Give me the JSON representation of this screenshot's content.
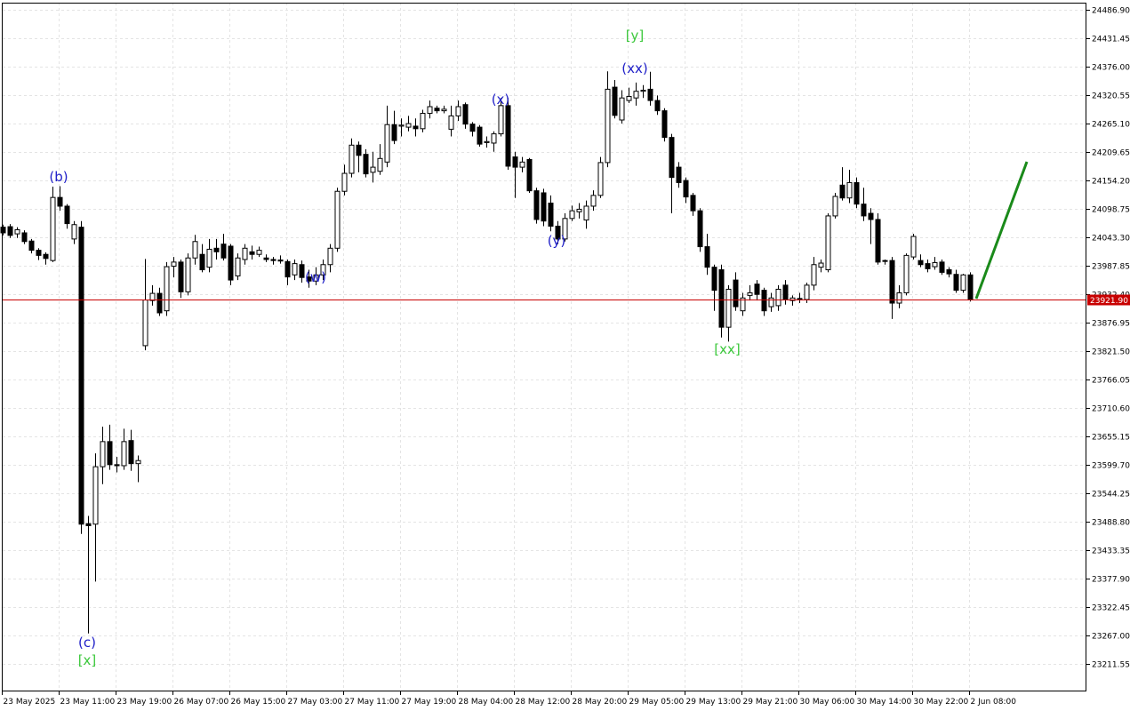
{
  "chart_data": {
    "type": "candlestick",
    "categories": [
      "23 May 2025",
      null,
      null,
      null,
      null,
      null,
      null,
      null,
      "23 May 11:00",
      null,
      null,
      null,
      null,
      null,
      null,
      null,
      "23 May 19:00",
      null,
      null,
      null,
      null,
      null,
      null,
      null,
      "26 May 07:00",
      null,
      null,
      null,
      null,
      null,
      null,
      null,
      "26 May 15:00",
      null,
      null,
      null,
      null,
      null,
      null,
      null,
      "27 May 03:00",
      null,
      null,
      null,
      null,
      null,
      null,
      null,
      "27 May 11:00",
      null,
      null,
      null,
      null,
      null,
      null,
      null,
      "27 May 19:00",
      null,
      null,
      null,
      null,
      null,
      null,
      null,
      "28 May 04:00",
      null,
      null,
      null,
      null,
      null,
      null,
      null,
      "28 May 12:00",
      null,
      null,
      null,
      null,
      null,
      null,
      null,
      "28 May 20:00",
      null,
      null,
      null,
      null,
      null,
      null,
      null,
      "29 May 05:00",
      null,
      null,
      null,
      null,
      null,
      null,
      null,
      "29 May 13:00",
      null,
      null,
      null,
      null,
      null,
      null,
      null,
      "29 May 21:00",
      null,
      null,
      null,
      null,
      null,
      null,
      null,
      "30 May 06:00",
      null,
      null,
      null,
      null,
      null,
      null,
      null,
      "30 May 14:00",
      null,
      null,
      null,
      null,
      null,
      null,
      null,
      "30 May 22:00",
      null,
      null,
      null,
      null,
      null,
      null,
      null,
      "2 Jun 08:00"
    ],
    "open": [
      24063,
      24064,
      24050,
      24052,
      24036,
      24018,
      24010,
      23998,
      24121,
      24104,
      24040,
      24063,
      23485,
      23484,
      23596,
      23645,
      23600,
      23598,
      23647,
      23602,
      23832,
      23920,
      23934,
      23900,
      23987,
      23995,
      23937,
      24003,
      24010,
      23985,
      24022,
      24030,
      24026,
      23968,
      24000,
      24015,
      24010,
      24003,
      24000,
      23999,
      23996,
      23970,
      23990,
      23966,
      23958,
      23970,
      23990,
      24022,
      24133,
      24168,
      24223,
      24205,
      24170,
      24172,
      24190,
      24263,
      24260,
      24258,
      24260,
      24255,
      24285,
      24295,
      24290,
      24254,
      24280,
      24302,
      24264,
      24258,
      24228,
      24227,
      24245,
      24300,
      24200,
      24180,
      24195,
      24134,
      24130,
      24110,
      24065,
      24040,
      24080,
      24093,
      24077,
      24104,
      24125,
      24189,
      24336,
      24272,
      24310,
      24315,
      24328,
      24332,
      24310,
      24290,
      24238,
      24180,
      24154,
      24125,
      24095,
      24025,
      23985,
      23980,
      23868,
      23960,
      23900,
      23930,
      23952,
      23940,
      23908,
      23910,
      23950,
      23920,
      23924,
      23922,
      23950,
      23985,
      23980,
      24085,
      24145,
      24120,
      24150,
      24108,
      24090,
      24078,
      23997,
      23998,
      23915,
      23935,
      24005,
      23998,
      23992,
      23986,
      23995,
      23980,
      23971,
      23940,
      23970
    ],
    "high": [
      24068,
      24069,
      24063,
      24057,
      24040,
      24022,
      24014,
      24142,
      24143,
      24108,
      24075,
      24075,
      23500,
      23622,
      23674,
      23678,
      23615,
      23670,
      23668,
      23618,
      24001,
      23950,
      23945,
      23995,
      24005,
      24000,
      24012,
      24048,
      24030,
      24040,
      24040,
      24050,
      24030,
      24012,
      24030,
      24027,
      24025,
      24010,
      24005,
      24008,
      24000,
      24000,
      23998,
      23980,
      23985,
      24000,
      24030,
      24140,
      24185,
      24236,
      24230,
      24215,
      24210,
      24225,
      24300,
      24290,
      24275,
      24280,
      24275,
      24292,
      24310,
      24300,
      24300,
      24300,
      24310,
      24306,
      24268,
      24262,
      24240,
      24250,
      24315,
      24315,
      24210,
      24200,
      24198,
      24140,
      24138,
      24125,
      24075,
      24090,
      24105,
      24110,
      24115,
      24135,
      24200,
      24367,
      24350,
      24330,
      24335,
      24345,
      24340,
      24366,
      24320,
      24295,
      24245,
      24190,
      24160,
      24130,
      24100,
      24050,
      23990,
      23990,
      23950,
      23975,
      23935,
      23950,
      23960,
      23945,
      23935,
      23950,
      23960,
      23930,
      23935,
      23955,
      24005,
      24000,
      24090,
      24130,
      24180,
      24175,
      24160,
      24140,
      24100,
      24090,
      24000,
      24005,
      23950,
      24012,
      24050,
      24010,
      24000,
      24005,
      24000,
      23985,
      23980,
      23972,
      23975
    ],
    "low": [
      24047,
      24042,
      24042,
      24030,
      24012,
      23999,
      23990,
      23995,
      24095,
      24060,
      24030,
      23465,
      23271,
      23372,
      23562,
      23590,
      23585,
      23590,
      23588,
      23566,
      23823,
      23910,
      23890,
      23890,
      23965,
      23925,
      23930,
      23990,
      23975,
      23975,
      24000,
      23998,
      23950,
      23960,
      23990,
      24000,
      24005,
      23995,
      23990,
      23992,
      23950,
      23960,
      23955,
      23945,
      23950,
      23960,
      23975,
      24015,
      24125,
      24160,
      24170,
      24160,
      24150,
      24165,
      24180,
      24225,
      24240,
      24250,
      24240,
      24248,
      24275,
      24285,
      24285,
      24240,
      24270,
      24255,
      24240,
      24220,
      24218,
      24210,
      24240,
      24175,
      24120,
      24170,
      24130,
      24070,
      24065,
      24055,
      24030,
      24035,
      24075,
      24080,
      24060,
      24095,
      24120,
      24180,
      24275,
      24265,
      24305,
      24300,
      24315,
      24300,
      24282,
      24230,
      24090,
      24140,
      24110,
      24085,
      24015,
      23970,
      23900,
      23848,
      23840,
      23900,
      23890,
      23920,
      23920,
      23890,
      23898,
      23900,
      23912,
      23910,
      23915,
      23915,
      23940,
      23975,
      23975,
      24080,
      24115,
      24110,
      24100,
      24075,
      24030,
      23990,
      23990,
      23884,
      23905,
      23930,
      24000,
      23985,
      23975,
      23980,
      23970,
      23965,
      23935,
      23935,
      23918
    ],
    "close": [
      24052,
      24047,
      24058,
      24035,
      24018,
      24008,
      24002,
      24121,
      24104,
      24070,
      24068,
      23484,
      23481,
      23596,
      23645,
      23600,
      23598,
      23645,
      23602,
      23608,
      23921,
      23934,
      23896,
      23986,
      23995,
      23937,
      24003,
      24035,
      23980,
      24020,
      24015,
      24003,
      23960,
      24003,
      24022,
      24010,
      24018,
      24000,
      23998,
      23997,
      23966,
      23992,
      23965,
      23958,
      23970,
      23990,
      24022,
      24133,
      24168,
      24223,
      24203,
      24167,
      24180,
      24197,
      24263,
      24232,
      24262,
      24265,
      24255,
      24285,
      24298,
      24290,
      24293,
      24280,
      24298,
      24264,
      24250,
      24225,
      24230,
      24245,
      24300,
      24182,
      24180,
      24190,
      24134,
      24078,
      24075,
      24065,
      24040,
      24080,
      24095,
      24098,
      24104,
      24125,
      24189,
      24332,
      24281,
      24315,
      24318,
      24328,
      24330,
      24310,
      24290,
      24238,
      24160,
      24150,
      24122,
      24095,
      24025,
      23985,
      23940,
      23868,
      23942,
      23908,
      23925,
      23935,
      23932,
      23900,
      23925,
      23942,
      23922,
      23925,
      23922,
      23950,
      23990,
      23993,
      24085,
      24123,
      24120,
      24150,
      24108,
      24085,
      24078,
      23995,
      23998,
      23915,
      23935,
      24008,
      24045,
      23990,
      23982,
      23994,
      23975,
      23972,
      23940,
      23970,
      23921.9
    ],
    "up_color": "#ffffff",
    "down_color": "#000000",
    "ylim": [
      23157.84,
      24500.76
    ],
    "yticks": [
      {
        "value": 24486.9,
        "label": "24486.90"
      },
      {
        "value": 24431.45,
        "label": "24431.45"
      },
      {
        "value": 24376,
        "label": "24376.00"
      },
      {
        "value": 24320.55,
        "label": "24320.55"
      },
      {
        "value": 24265.1,
        "label": "24265.10"
      },
      {
        "value": 24209.65,
        "label": "24209.65"
      },
      {
        "value": 24154.2,
        "label": "24154.20"
      },
      {
        "value": 24098.75,
        "label": "24098.75"
      },
      {
        "value": 24043.3,
        "label": "24043.30"
      },
      {
        "value": 23987.85,
        "label": "23987.85"
      },
      {
        "value": 23932.4,
        "label": "23932.40"
      },
      {
        "value": 23876.95,
        "label": "23876.95"
      },
      {
        "value": 23821.5,
        "label": "23821.50"
      },
      {
        "value": 23766.05,
        "label": "23766.05"
      },
      {
        "value": 23710.6,
        "label": "23710.60"
      },
      {
        "value": 23655.15,
        "label": "23655.15"
      },
      {
        "value": 23599.7,
        "label": "23599.70"
      },
      {
        "value": 23544.25,
        "label": "23544.25"
      },
      {
        "value": 23488.8,
        "label": "23488.80"
      },
      {
        "value": 23433.35,
        "label": "23433.35"
      },
      {
        "value": 23377.9,
        "label": "23377.90"
      },
      {
        "value": 23322.45,
        "label": "23322.45"
      },
      {
        "value": 23267,
        "label": "23267.00"
      },
      {
        "value": 23211.55,
        "label": "23211.55"
      }
    ],
    "grid": true,
    "current_price": {
      "value": 23921.9,
      "label": "23921.90"
    },
    "current_price_color": "#c80000",
    "annotations": [
      {
        "text": "(b)",
        "color": "#2020c8"
      },
      {
        "text": "(c)",
        "color": "#2020c8"
      },
      {
        "text": "[x]",
        "color": "#3cc83c"
      },
      {
        "text": "(w)",
        "color": "#2020c8"
      },
      {
        "text": "(x)",
        "color": "#2020c8"
      },
      {
        "text": "(y)",
        "color": "#2020c8"
      },
      {
        "text": "[y]",
        "color": "#3cc83c"
      },
      {
        "text": "(xx)",
        "color": "#2020c8"
      },
      {
        "text": "[xx]",
        "color": "#3cc83c"
      }
    ]
  }
}
